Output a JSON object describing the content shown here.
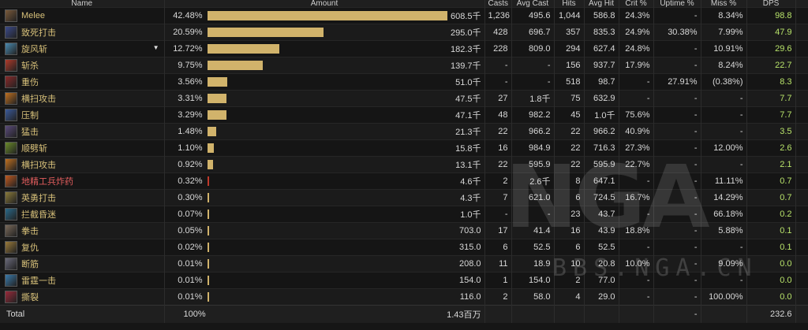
{
  "headers": {
    "name": "Name",
    "amount": "Amount",
    "casts": "Casts",
    "avg_cast": "Avg Cast",
    "hits": "Hits",
    "avg_hit": "Avg Hit",
    "crit": "Crit %",
    "uptime": "Uptime %",
    "miss": "Miss %",
    "dps": "DPS"
  },
  "rows": [
    {
      "name": "Melee",
      "icon": "melee-icon",
      "pct": "42.48%",
      "fraction": 0.4248,
      "amount": "608.5千",
      "casts": "1,236",
      "avg_cast": "495.6",
      "hits": "1,044",
      "avg_hit": "586.8",
      "crit": "24.3%",
      "uptime": "-",
      "miss": "8.34%",
      "dps": "98.8"
    },
    {
      "name": "致死打击",
      "icon": "mortal-strike-icon",
      "pct": "20.59%",
      "fraction": 0.2059,
      "amount": "295.0千",
      "casts": "428",
      "avg_cast": "696.7",
      "hits": "357",
      "avg_hit": "835.3",
      "crit": "24.9%",
      "uptime": "30.38%",
      "miss": "7.99%",
      "dps": "47.9"
    },
    {
      "name": "旋风斩",
      "icon": "whirlwind-icon",
      "pct": "12.72%",
      "fraction": 0.1272,
      "amount": "182.3千",
      "casts": "228",
      "avg_cast": "809.0",
      "hits": "294",
      "avg_hit": "627.4",
      "crit": "24.8%",
      "uptime": "-",
      "miss": "10.91%",
      "dps": "29.6",
      "expanded": "▼"
    },
    {
      "name": "斩杀",
      "icon": "execute-icon",
      "pct": "9.75%",
      "fraction": 0.0975,
      "amount": "139.7千",
      "casts": "-",
      "avg_cast": "-",
      "hits": "156",
      "avg_hit": "937.7",
      "crit": "17.9%",
      "uptime": "-",
      "miss": "8.24%",
      "dps": "22.7"
    },
    {
      "name": "重伤",
      "icon": "deep-wounds-icon",
      "pct": "3.56%",
      "fraction": 0.0356,
      "amount": "51.0千",
      "casts": "-",
      "avg_cast": "-",
      "hits": "518",
      "avg_hit": "98.7",
      "crit": "-",
      "uptime": "27.91%",
      "miss": "(0.38%)",
      "dps": "8.3"
    },
    {
      "name": "横扫攻击",
      "icon": "sweeping-strikes-icon",
      "pct": "3.31%",
      "fraction": 0.0331,
      "amount": "47.5千",
      "casts": "27",
      "avg_cast": "1.8千",
      "hits": "75",
      "avg_hit": "632.9",
      "crit": "-",
      "uptime": "-",
      "miss": "-",
      "dps": "7.7"
    },
    {
      "name": "压制",
      "icon": "overpower-icon",
      "pct": "3.29%",
      "fraction": 0.0329,
      "amount": "47.1千",
      "casts": "48",
      "avg_cast": "982.2",
      "hits": "45",
      "avg_hit": "1.0千",
      "crit": "75.6%",
      "uptime": "-",
      "miss": "-",
      "dps": "7.7"
    },
    {
      "name": "猛击",
      "icon": "slam-icon",
      "pct": "1.48%",
      "fraction": 0.0148,
      "amount": "21.3千",
      "casts": "22",
      "avg_cast": "966.2",
      "hits": "22",
      "avg_hit": "966.2",
      "crit": "40.9%",
      "uptime": "-",
      "miss": "-",
      "dps": "3.5"
    },
    {
      "name": "顺劈斩",
      "icon": "cleave-icon",
      "pct": "1.10%",
      "fraction": 0.011,
      "amount": "15.8千",
      "casts": "16",
      "avg_cast": "984.9",
      "hits": "22",
      "avg_hit": "716.3",
      "crit": "27.3%",
      "uptime": "-",
      "miss": "12.00%",
      "dps": "2.6"
    },
    {
      "name": "横扫攻击",
      "icon": "sweeping-strikes-icon",
      "pct": "0.92%",
      "fraction": 0.0092,
      "amount": "13.1千",
      "casts": "22",
      "avg_cast": "595.9",
      "hits": "22",
      "avg_hit": "595.9",
      "crit": "22.7%",
      "uptime": "-",
      "miss": "-",
      "dps": "2.1"
    },
    {
      "name": "地精工兵炸药",
      "icon": "sapper-charge-icon",
      "pct": "0.32%",
      "fraction": 0.0032,
      "amount": "4.6千",
      "casts": "2",
      "avg_cast": "2.6千",
      "hits": "8",
      "avg_hit": "647.1",
      "crit": "-",
      "uptime": "-",
      "miss": "11.11%",
      "dps": "0.7",
      "red": true
    },
    {
      "name": "英勇打击",
      "icon": "heroic-strike-icon",
      "pct": "0.30%",
      "fraction": 0.003,
      "amount": "4.3千",
      "casts": "7",
      "avg_cast": "621.0",
      "hits": "6",
      "avg_hit": "724.5",
      "crit": "16.7%",
      "uptime": "-",
      "miss": "14.29%",
      "dps": "0.7"
    },
    {
      "name": "拦截昏迷",
      "icon": "intercept-stun-icon",
      "pct": "0.07%",
      "fraction": 0.0007,
      "amount": "1.0千",
      "casts": "-",
      "avg_cast": "-",
      "hits": "23",
      "avg_hit": "43.7",
      "crit": "-",
      "uptime": "-",
      "miss": "66.18%",
      "dps": "0.2"
    },
    {
      "name": "拳击",
      "icon": "pummel-icon",
      "pct": "0.05%",
      "fraction": 0.0005,
      "amount": "703.0",
      "casts": "17",
      "avg_cast": "41.4",
      "hits": "16",
      "avg_hit": "43.9",
      "crit": "18.8%",
      "uptime": "-",
      "miss": "5.88%",
      "dps": "0.1"
    },
    {
      "name": "复仇",
      "icon": "revenge-icon",
      "pct": "0.02%",
      "fraction": 0.0002,
      "amount": "315.0",
      "casts": "6",
      "avg_cast": "52.5",
      "hits": "6",
      "avg_hit": "52.5",
      "crit": "-",
      "uptime": "-",
      "miss": "-",
      "dps": "0.1"
    },
    {
      "name": "断筋",
      "icon": "hamstring-icon",
      "pct": "0.01%",
      "fraction": 0.0001,
      "amount": "208.0",
      "casts": "11",
      "avg_cast": "18.9",
      "hits": "10",
      "avg_hit": "20.8",
      "crit": "10.0%",
      "uptime": "-",
      "miss": "9.09%",
      "dps": "0.0"
    },
    {
      "name": "雷霆一击",
      "icon": "thunder-clap-icon",
      "pct": "0.01%",
      "fraction": 0.0001,
      "amount": "154.0",
      "casts": "1",
      "avg_cast": "154.0",
      "hits": "2",
      "avg_hit": "77.0",
      "crit": "-",
      "uptime": "-",
      "miss": "-",
      "dps": "0.0"
    },
    {
      "name": "撕裂",
      "icon": "rend-icon",
      "pct": "0.01%",
      "fraction": 0.0001,
      "amount": "116.0",
      "casts": "2",
      "avg_cast": "58.0",
      "hits": "4",
      "avg_hit": "29.0",
      "crit": "-",
      "uptime": "-",
      "miss": "100.00%",
      "dps": "0.0"
    }
  ],
  "total": {
    "label": "Total",
    "pct": "100%",
    "amount": "1.43百万",
    "uptime": "-",
    "dps": "232.6"
  },
  "watermark": {
    "logo": "NGA",
    "url": "BBS.NGA.CN"
  },
  "colors": {
    "bar": "#d1b36b",
    "bar_red": "#c0392b",
    "name": "#d8c17a",
    "name_red": "#e25d5d",
    "dps": "#b8e36a"
  },
  "icon_colors": {
    "melee-icon": "#7a5a3a",
    "mortal-strike-icon": "#3b4a8a",
    "whirlwind-icon": "#4a8ab0",
    "execute-icon": "#b03a2a",
    "deep-wounds-icon": "#8a2a2a",
    "sweeping-strikes-icon": "#c07020",
    "overpower-icon": "#3a5a9a",
    "slam-icon": "#5a4a7a",
    "cleave-icon": "#6a8a2a",
    "sapper-charge-icon": "#c05a20",
    "heroic-strike-icon": "#8a7a3a",
    "intercept-stun-icon": "#2a6a8a",
    "pummel-icon": "#7a6a5a",
    "revenge-icon": "#9a7a3a",
    "hamstring-icon": "#6a6a7a",
    "thunder-clap-icon": "#3a7aaa",
    "rend-icon": "#9a2a3a"
  }
}
